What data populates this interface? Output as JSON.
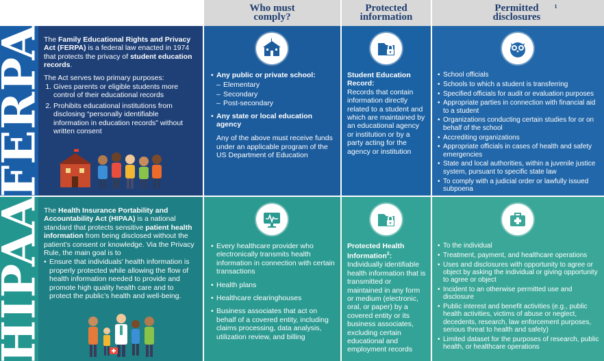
{
  "headers": {
    "who": "Who must comply?",
    "protected": "Protected information",
    "permitted": "Permitted disclosures",
    "permitted_sup": "1"
  },
  "ferpa": {
    "label": "FERPA",
    "desc": {
      "pre": "The ",
      "name": "Family Educational Rights and Privacy Act (FERPA)",
      "mid": " is a federal law enacted in 1974 that protects the privacy of ",
      "bold": "student education records",
      "post": ".",
      "purposes_intro": "The Act serves two primary purposes:",
      "purposes": [
        "Gives parents or eligible students more control of their educational records",
        "Prohibits educational institutions from disclosing “personally identifiable information in education records” without written consent"
      ]
    },
    "who": {
      "item1": "Any public or private school:",
      "levels": [
        "Elementary",
        "Secondary",
        "Post-secondary"
      ],
      "item2": "Any state or local education agency",
      "note": "Any of the above must receive funds under an applicable program of the US Department of Education"
    },
    "protected": {
      "title": "Student Education Record:",
      "text": "Records that contain information directly related to a student and which are maintained by an educational agency or institution or by a party acting for the agency or institution"
    },
    "disclosures": [
      "School officials",
      "Schools to which a student is transferring",
      "Specified officials for audit or evaluation purposes",
      "Appropriate parties in connection with financial aid to a student",
      "Organizations conducting certain studies for or on behalf of the school",
      "Accrediting organizations",
      "Appropriate officials in cases of health and safety emergencies",
      "State and local authorities, within a juvenile justice system, pursuant to specific state law",
      "To comply with a judicial order or lawfully issued subpoena"
    ],
    "icons": {
      "who": "school-icon",
      "protected": "folder-lock-icon",
      "permitted": "owl-icon"
    }
  },
  "hipaa": {
    "label": "HIPAA",
    "desc": {
      "pre": "The ",
      "name": "Health Insurance Portability and Accountability Act (HIPAA)",
      "mid": " is a national standard that protects sensitive ",
      "bold": "patient health information",
      "post": " from being disclosed without the patient’s consent or knowledge. Via the Privacy Rule, the main goal is to",
      "goal": "Ensure that individuals’ health information is properly protected while allowing the flow of health information needed to provide and promote high quality health care and to protect the public’s health and well-being."
    },
    "who": [
      "Every healthcare provider who electronically transmits health information in connection with certain transactions",
      "Health plans",
      "Healthcare clearinghouses",
      "Business associates that act on behalf of a covered entity, including claims processing, data analysis, utilization review, and billing"
    ],
    "protected": {
      "title": "Protected Health Information",
      "title_sup": "2",
      "title_end": ":",
      "text": "Individually identifiable health information that is transmitted or maintained in any form or medium (electronic, oral, or paper) by a covered entity or its business associates, excluding certain educational and employment records"
    },
    "disclosures": [
      "To the individual",
      "Treatment, payment, and healthcare operations",
      "Uses and disclosures with opportunity to agree or object by asking the individual or giving opportunity to agree or object",
      "Incident to an otherwise permitted use and disclosure",
      "Public interest and benefit activities (e.g., public health activities, victims of abuse or neglect, decedents, research, law enforcement purposes, serious threat to health and safety)",
      "Limited dataset for the purposes of research, public health, or healthcare operations"
    ],
    "icons": {
      "who": "monitor-heartbeat-icon",
      "protected": "folder-lock-icon",
      "permitted": "medical-kit-icon"
    }
  },
  "colors": {
    "header_bg": "#d8d8d8",
    "header_text": "#1f3d6e",
    "ferpa_band": "#1a5ea8",
    "hipaa_band": "#23968f"
  }
}
